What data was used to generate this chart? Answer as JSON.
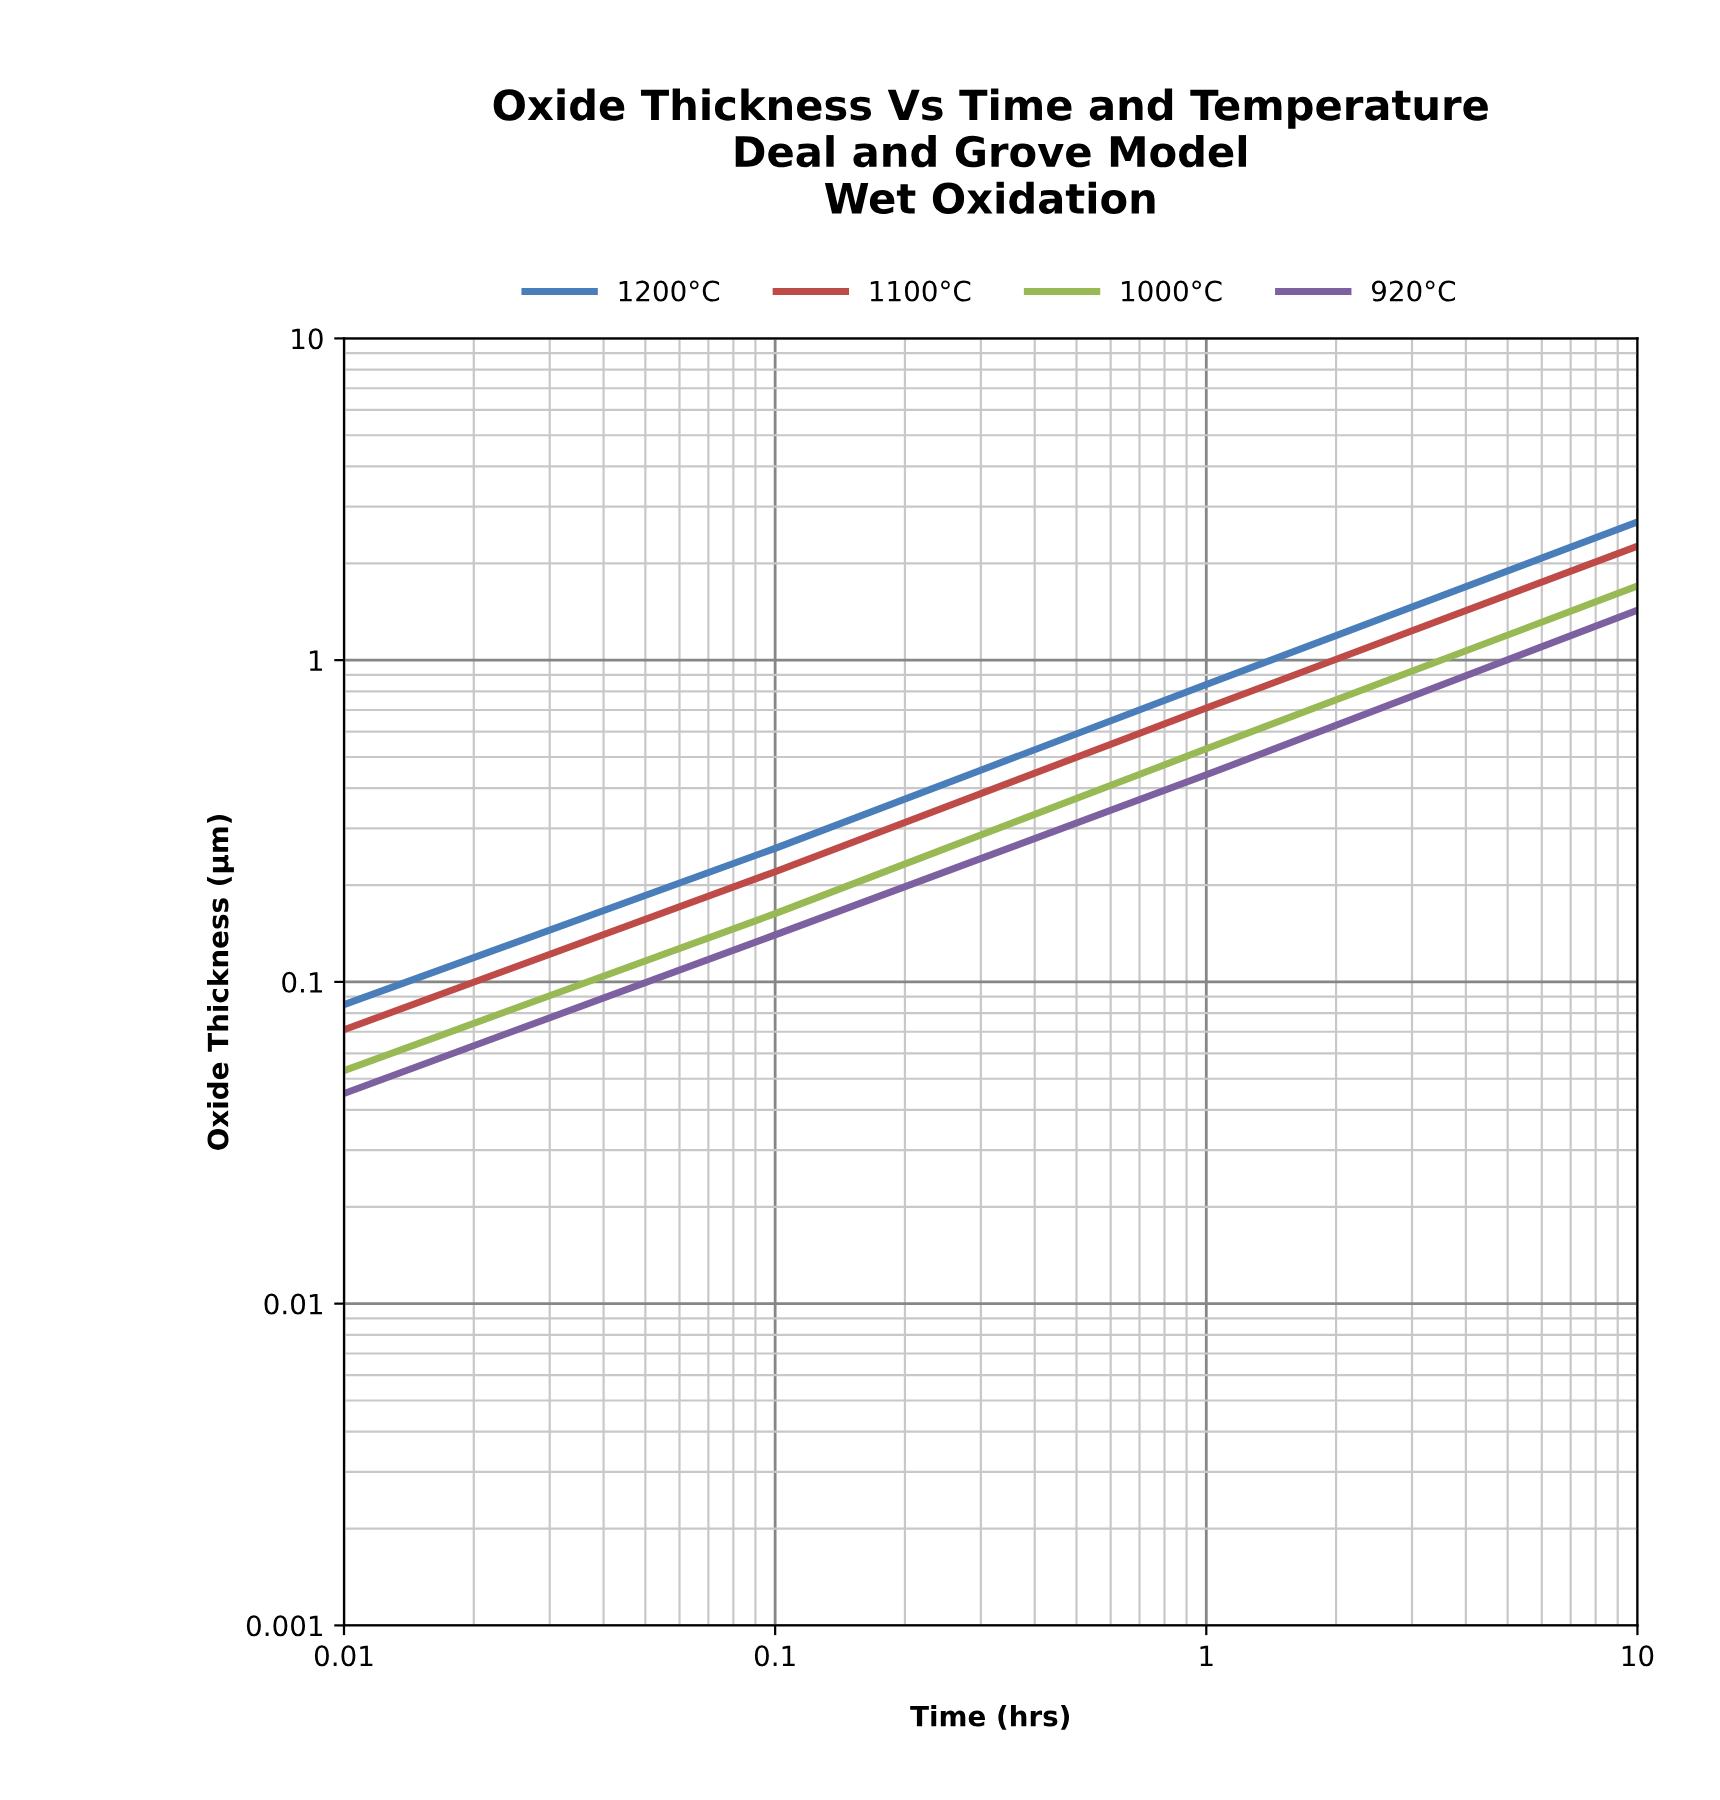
{
  "chart_data": {
    "type": "line",
    "title": "Oxide Thickness Vs Time and Temperature\nDeal and Grove Model\nWet Oxidation",
    "xlabel": "Time (hrs)",
    "ylabel": "Oxide Thickness (µm)",
    "log": "xy",
    "x": [
      0.01,
      0.1,
      1,
      10
    ],
    "series": [
      {
        "name": "1200°C",
        "color": "#4a7ebb",
        "values": [
          0.085,
          0.26,
          0.84,
          2.69
        ]
      },
      {
        "name": "1100°C",
        "color": "#be4b48",
        "values": [
          0.071,
          0.22,
          0.71,
          2.26
        ]
      },
      {
        "name": "1000°C",
        "color": "#98b954",
        "values": [
          0.053,
          0.163,
          0.53,
          1.7
        ]
      },
      {
        "name": "920°C",
        "color": "#7d60a0",
        "values": [
          0.045,
          0.14,
          0.44,
          1.43
        ]
      }
    ],
    "xlim": [
      0.01,
      10
    ],
    "xticks": [
      0.01,
      0.1,
      1,
      10
    ],
    "ylim": [
      0.001,
      10
    ],
    "yticks": [
      0.001,
      0.01,
      0.1,
      1,
      10
    ],
    "grid": true,
    "legend": "top",
    "marker": "none",
    "line_style": "solid"
  }
}
